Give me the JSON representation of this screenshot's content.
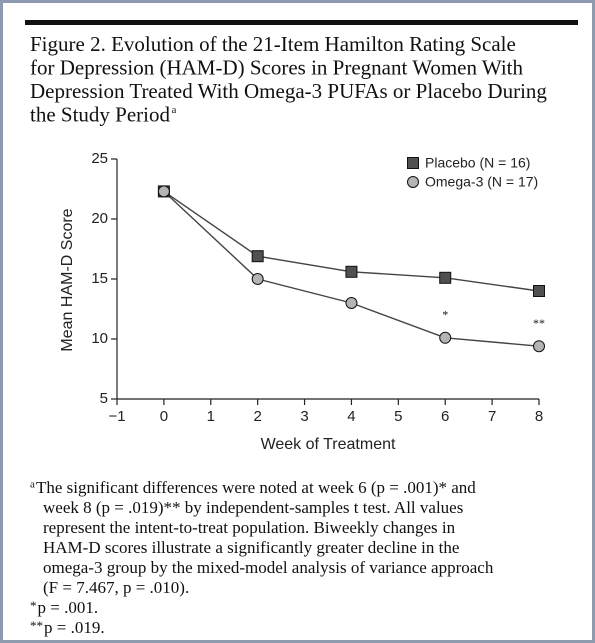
{
  "chart_data": {
    "type": "line",
    "title": [
      "Figure 2. Evolution of the 21-Item Hamilton Rating Scale",
      "for Depression (HAM-D) Scores in Pregnant Women With",
      "Depression Treated With Omega-3 PUFAs or Placebo During",
      "the Study Period"
    ],
    "title_marker": "a",
    "x_label": "Week of Treatment",
    "y_label": "Mean HAM-D Score",
    "x": [
      0,
      2,
      4,
      6,
      8
    ],
    "series": [
      {
        "name": "Placebo (N = 16)",
        "color": "#505050",
        "marker": "square",
        "values": [
          22.3,
          16.9,
          15.6,
          15.1,
          14.0
        ]
      },
      {
        "name": "Omega-3 (N = 17)",
        "color": "#b4b4b4",
        "marker": "circle",
        "values": [
          22.3,
          15.0,
          13.0,
          10.1,
          9.4
        ]
      }
    ],
    "annotations": [
      {
        "text": "*",
        "x": 6
      },
      {
        "text": "**",
        "x": 8
      }
    ],
    "xlim": [
      -1,
      8
    ],
    "xticks": [
      {
        "value": -1,
        "label": "−1"
      },
      0,
      1,
      2,
      3,
      4,
      5,
      6,
      7,
      8
    ],
    "ylim": [
      5,
      25
    ],
    "yticks": [
      5,
      10,
      15,
      20,
      25
    ],
    "legend": "upper right",
    "footnotes": [
      {
        "marker": "a",
        "lines": [
          "The significant differences were noted at week 6 (p = .001)* and",
          "week 8 (p = .019)** by independent-samples t test. All values",
          "represent the intent-to-treat population. Biweekly changes in",
          "HAM-D scores illustrate a significantly greater decline in the",
          "omega-3 group by the mixed-model analysis of variance approach",
          "(F = 7.467, p = .010)."
        ]
      },
      {
        "marker": "*",
        "lines": [
          "p = .001."
        ]
      },
      {
        "marker": "**",
        "lines": [
          "p = .019."
        ]
      }
    ]
  }
}
